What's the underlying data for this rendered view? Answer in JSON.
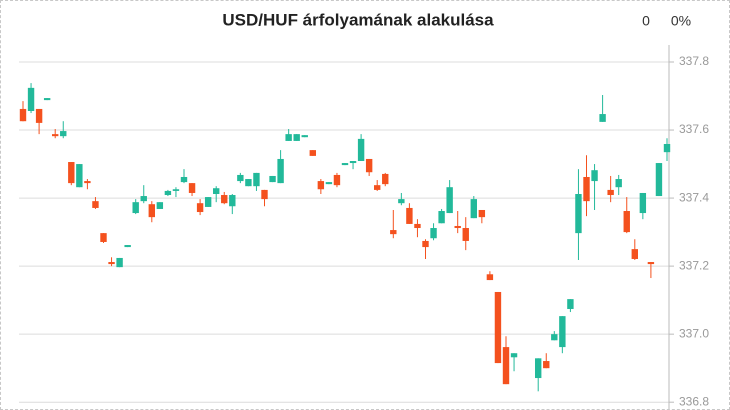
{
  "chart_data": {
    "type": "candlestick",
    "title": "USD/HUF árfolyamának alakulása",
    "annotations": [
      "0",
      "0%"
    ],
    "up_color": "#22b99a",
    "down_color": "#f4511e",
    "grid": true,
    "y_axis_side": "right",
    "ylim": [
      336.78,
      337.85
    ],
    "yticks": [
      {
        "value": 336.8,
        "label": "336.8"
      },
      {
        "value": 337.0,
        "label": "337.0"
      },
      {
        "value": 337.2,
        "label": "337.2"
      },
      {
        "value": 337.4,
        "label": "337.4"
      },
      {
        "value": 337.6,
        "label": "337.6"
      },
      {
        "value": 337.8,
        "label": "337.8"
      }
    ],
    "open": [
      337.662,
      337.656,
      337.662,
      337.688,
      337.588,
      337.582,
      337.506,
      337.432,
      337.45,
      337.391,
      337.297,
      337.212,
      337.197,
      337.256,
      337.356,
      337.391,
      337.382,
      337.368,
      337.409,
      337.421,
      337.447,
      337.444,
      337.385,
      337.374,
      337.412,
      337.409,
      337.376,
      337.45,
      337.435,
      337.435,
      337.424,
      337.447,
      337.444,
      337.568,
      337.568,
      337.579,
      337.541,
      337.45,
      337.441,
      337.468,
      337.497,
      337.503,
      337.509,
      337.515,
      337.438,
      337.471,
      337.306,
      337.385,
      337.371,
      337.324,
      337.274,
      337.282,
      337.326,
      337.356,
      337.318,
      337.312,
      337.341,
      337.365,
      337.176,
      337.124,
      336.962,
      336.932,
      null,
      null,
      336.871,
      336.921,
      336.982,
      336.962,
      337.074,
      337.297,
      337.462,
      337.45,
      337.624,
      337.424,
      337.432,
      337.362,
      337.25,
      337.356,
      337.212,
      337.406,
      337.535
    ],
    "high": [
      337.685,
      337.738,
      337.662,
      337.694,
      337.603,
      337.626,
      337.506,
      337.5,
      337.456,
      337.403,
      337.297,
      337.226,
      337.224,
      337.262,
      337.397,
      337.438,
      337.391,
      337.388,
      337.424,
      337.432,
      337.485,
      337.444,
      337.397,
      337.403,
      337.435,
      337.418,
      337.412,
      337.474,
      337.456,
      337.474,
      337.424,
      337.465,
      337.541,
      337.603,
      337.588,
      337.585,
      337.541,
      337.456,
      337.447,
      337.474,
      337.503,
      337.509,
      337.588,
      337.515,
      337.453,
      337.474,
      337.365,
      337.415,
      337.385,
      337.338,
      337.279,
      337.326,
      337.368,
      337.453,
      337.362,
      337.344,
      337.406,
      337.365,
      337.185,
      337.124,
      336.994,
      336.944,
      null,
      null,
      336.929,
      336.944,
      337.009,
      337.053,
      337.103,
      337.485,
      337.526,
      337.5,
      337.703,
      337.465,
      337.468,
      337.403,
      337.279,
      337.415,
      337.212,
      337.503,
      337.576
    ],
    "low": [
      337.626,
      337.65,
      337.588,
      337.688,
      337.576,
      337.576,
      337.438,
      337.432,
      337.426,
      337.368,
      337.268,
      337.2,
      337.197,
      337.256,
      337.353,
      337.385,
      337.329,
      337.368,
      337.406,
      337.403,
      337.444,
      337.406,
      337.35,
      337.374,
      337.388,
      337.382,
      337.353,
      337.444,
      337.435,
      337.421,
      337.376,
      337.447,
      337.444,
      337.568,
      337.568,
      337.579,
      337.524,
      337.412,
      337.441,
      337.432,
      337.497,
      337.485,
      337.509,
      337.465,
      337.421,
      337.435,
      337.282,
      337.379,
      337.324,
      337.285,
      337.221,
      337.276,
      337.326,
      337.356,
      337.297,
      337.247,
      337.341,
      337.326,
      337.159,
      336.915,
      336.853,
      336.891,
      null,
      null,
      336.832,
      336.9,
      336.982,
      336.944,
      337.065,
      337.218,
      337.347,
      337.365,
      337.624,
      337.388,
      337.409,
      337.297,
      337.218,
      337.338,
      337.165,
      337.406,
      337.509
    ],
    "close": [
      337.626,
      337.724,
      337.621,
      337.694,
      337.582,
      337.597,
      337.444,
      337.5,
      337.444,
      337.371,
      337.271,
      337.206,
      337.224,
      337.262,
      337.388,
      337.406,
      337.344,
      337.388,
      337.421,
      337.426,
      337.462,
      337.415,
      337.359,
      337.403,
      337.429,
      337.385,
      337.409,
      337.468,
      337.456,
      337.474,
      337.397,
      337.465,
      337.515,
      337.588,
      337.588,
      337.585,
      337.524,
      337.426,
      337.447,
      337.438,
      337.503,
      337.509,
      337.574,
      337.476,
      337.424,
      337.441,
      337.294,
      337.397,
      337.324,
      337.312,
      337.256,
      337.312,
      337.362,
      337.432,
      337.312,
      337.274,
      337.397,
      337.344,
      337.159,
      336.915,
      336.853,
      336.944,
      null,
      null,
      336.929,
      336.9,
      337.0,
      337.053,
      337.103,
      337.412,
      337.391,
      337.482,
      337.647,
      337.409,
      337.456,
      337.3,
      337.221,
      337.415,
      337.206,
      337.503,
      337.559
    ]
  }
}
